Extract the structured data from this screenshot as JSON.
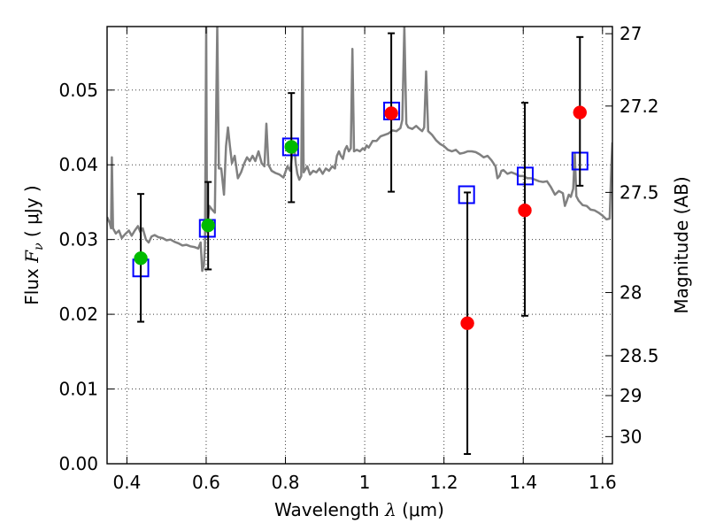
{
  "chart_data": {
    "type": "scatter",
    "xlabel": "Wavelength",
    "xlabel_symbol": "λ",
    "xlabel_unit_open": "(",
    "xlabel_unit": "μm",
    "xlabel_unit_close": ")",
    "ylabel": "Flux",
    "ylabel_symbol": "F",
    "ylabel_symbol_sub": "ν",
    "ylabel_unit_open": "(",
    "ylabel_unit": "μJy",
    "ylabel_unit_close": ")",
    "y2label": "Magnitude (AB)",
    "xlim": [
      0.35,
      1.625
    ],
    "ylim": [
      0.0,
      0.0585
    ],
    "grid": true,
    "x_ticks": [
      0.4,
      0.6,
      0.8,
      1.0,
      1.2,
      1.4,
      1.6
    ],
    "x_tick_labels": [
      "0.4",
      "0.6",
      "0.8",
      "1",
      "1.2",
      "1.4",
      "1.6"
    ],
    "y_ticks": [
      0.0,
      0.01,
      0.02,
      0.03,
      0.04,
      0.05
    ],
    "y_tick_labels": [
      "0.00",
      "0.01",
      "0.02",
      "0.03",
      "0.04",
      "0.05"
    ],
    "y2_ticks": [
      27,
      27.2,
      27.5,
      28,
      28.5,
      29,
      30
    ],
    "y2_tick_labels": [
      "27",
      "27.2",
      "27.5",
      "28",
      "28.5",
      "29",
      "30"
    ],
    "series": [
      {
        "kind": "line",
        "color": "#808080",
        "points": [
          [
            0.35,
            0.033
          ],
          [
            0.357,
            0.0322
          ],
          [
            0.36,
            0.0315
          ],
          [
            0.362,
            0.041
          ],
          [
            0.365,
            0.0315
          ],
          [
            0.372,
            0.0308
          ],
          [
            0.38,
            0.0312
          ],
          [
            0.387,
            0.0302
          ],
          [
            0.395,
            0.0307
          ],
          [
            0.405,
            0.0312
          ],
          [
            0.412,
            0.0305
          ],
          [
            0.42,
            0.0312
          ],
          [
            0.428,
            0.0318
          ],
          [
            0.434,
            0.031
          ],
          [
            0.44,
            0.0315
          ],
          [
            0.448,
            0.03
          ],
          [
            0.455,
            0.0296
          ],
          [
            0.462,
            0.0304
          ],
          [
            0.47,
            0.0306
          ],
          [
            0.48,
            0.0303
          ],
          [
            0.49,
            0.0302
          ],
          [
            0.5,
            0.0299
          ],
          [
            0.51,
            0.03
          ],
          [
            0.52,
            0.0297
          ],
          [
            0.53,
            0.0295
          ],
          [
            0.54,
            0.0292
          ],
          [
            0.55,
            0.0293
          ],
          [
            0.56,
            0.0291
          ],
          [
            0.57,
            0.029
          ],
          [
            0.58,
            0.0288
          ],
          [
            0.586,
            0.0296
          ],
          [
            0.59,
            0.0258
          ],
          [
            0.594,
            0.0265
          ],
          [
            0.597,
            0.029
          ],
          [
            0.6,
            0.0585
          ],
          [
            0.602,
            0.031
          ],
          [
            0.608,
            0.0345
          ],
          [
            0.615,
            0.034
          ],
          [
            0.622,
            0.0336
          ],
          [
            0.628,
            0.0585
          ],
          [
            0.632,
            0.0395
          ],
          [
            0.638,
            0.0395
          ],
          [
            0.645,
            0.036
          ],
          [
            0.65,
            0.0425
          ],
          [
            0.655,
            0.045
          ],
          [
            0.66,
            0.0425
          ],
          [
            0.665,
            0.0402
          ],
          [
            0.672,
            0.0412
          ],
          [
            0.68,
            0.0382
          ],
          [
            0.688,
            0.039
          ],
          [
            0.696,
            0.0402
          ],
          [
            0.703,
            0.041
          ],
          [
            0.71,
            0.0405
          ],
          [
            0.717,
            0.0412
          ],
          [
            0.724,
            0.0405
          ],
          [
            0.732,
            0.0418
          ],
          [
            0.74,
            0.0402
          ],
          [
            0.747,
            0.0398
          ],
          [
            0.752,
            0.0455
          ],
          [
            0.757,
            0.04
          ],
          [
            0.765,
            0.0392
          ],
          [
            0.775,
            0.0389
          ],
          [
            0.785,
            0.0387
          ],
          [
            0.795,
            0.0383
          ],
          [
            0.805,
            0.0398
          ],
          [
            0.812,
            0.0392
          ],
          [
            0.818,
            0.0418
          ],
          [
            0.822,
            0.0425
          ],
          [
            0.826,
            0.0402
          ],
          [
            0.83,
            0.0388
          ],
          [
            0.835,
            0.038
          ],
          [
            0.84,
            0.0385
          ],
          [
            0.843,
            0.0585
          ],
          [
            0.846,
            0.039
          ],
          [
            0.855,
            0.0398
          ],
          [
            0.862,
            0.0387
          ],
          [
            0.87,
            0.0392
          ],
          [
            0.878,
            0.039
          ],
          [
            0.886,
            0.0395
          ],
          [
            0.894,
            0.0388
          ],
          [
            0.902,
            0.0395
          ],
          [
            0.91,
            0.0392
          ],
          [
            0.918,
            0.0398
          ],
          [
            0.925,
            0.0395
          ],
          [
            0.93,
            0.0412
          ],
          [
            0.935,
            0.0418
          ],
          [
            0.94,
            0.0412
          ],
          [
            0.945,
            0.0408
          ],
          [
            0.95,
            0.042
          ],
          [
            0.955,
            0.0425
          ],
          [
            0.96,
            0.0418
          ],
          [
            0.965,
            0.0422
          ],
          [
            0.969,
            0.0555
          ],
          [
            0.973,
            0.0418
          ],
          [
            0.98,
            0.042
          ],
          [
            0.988,
            0.0418
          ],
          [
            0.995,
            0.0422
          ],
          [
            1.0,
            0.042
          ],
          [
            1.005,
            0.0426
          ],
          [
            1.01,
            0.0423
          ],
          [
            1.02,
            0.0432
          ],
          [
            1.03,
            0.0432
          ],
          [
            1.04,
            0.0438
          ],
          [
            1.05,
            0.044
          ],
          [
            1.06,
            0.0442
          ],
          [
            1.07,
            0.0446
          ],
          [
            1.08,
            0.0445
          ],
          [
            1.09,
            0.0449
          ],
          [
            1.095,
            0.046
          ],
          [
            1.1,
            0.0585
          ],
          [
            1.105,
            0.0455
          ],
          [
            1.11,
            0.045
          ],
          [
            1.12,
            0.0448
          ],
          [
            1.13,
            0.0452
          ],
          [
            1.138,
            0.0448
          ],
          [
            1.145,
            0.0445
          ],
          [
            1.15,
            0.045
          ],
          [
            1.155,
            0.0525
          ],
          [
            1.16,
            0.0445
          ],
          [
            1.17,
            0.044
          ],
          [
            1.18,
            0.0433
          ],
          [
            1.19,
            0.0428
          ],
          [
            1.2,
            0.0425
          ],
          [
            1.21,
            0.042
          ],
          [
            1.22,
            0.0418
          ],
          [
            1.23,
            0.042
          ],
          [
            1.24,
            0.0415
          ],
          [
            1.25,
            0.0416
          ],
          [
            1.26,
            0.0418
          ],
          [
            1.27,
            0.0418
          ],
          [
            1.28,
            0.0417
          ],
          [
            1.29,
            0.0414
          ],
          [
            1.3,
            0.041
          ],
          [
            1.31,
            0.0412
          ],
          [
            1.32,
            0.0406
          ],
          [
            1.33,
            0.0398
          ],
          [
            1.335,
            0.0382
          ],
          [
            1.34,
            0.0385
          ],
          [
            1.345,
            0.0392
          ],
          [
            1.35,
            0.0393
          ],
          [
            1.36,
            0.0388
          ],
          [
            1.37,
            0.039
          ],
          [
            1.38,
            0.0388
          ],
          [
            1.39,
            0.0385
          ],
          [
            1.4,
            0.0385
          ],
          [
            1.41,
            0.0382
          ],
          [
            1.42,
            0.0382
          ],
          [
            1.43,
            0.038
          ],
          [
            1.44,
            0.0378
          ],
          [
            1.45,
            0.0377
          ],
          [
            1.46,
            0.0378
          ],
          [
            1.47,
            0.037
          ],
          [
            1.48,
            0.036
          ],
          [
            1.49,
            0.0365
          ],
          [
            1.5,
            0.0362
          ],
          [
            1.505,
            0.0345
          ],
          [
            1.51,
            0.0352
          ],
          [
            1.515,
            0.036
          ],
          [
            1.52,
            0.0357
          ],
          [
            1.526,
            0.0368
          ],
          [
            1.53,
            0.0415
          ],
          [
            1.534,
            0.0358
          ],
          [
            1.54,
            0.0352
          ],
          [
            1.55,
            0.0346
          ],
          [
            1.56,
            0.0345
          ],
          [
            1.57,
            0.034
          ],
          [
            1.58,
            0.0339
          ],
          [
            1.59,
            0.0336
          ],
          [
            1.6,
            0.0332
          ],
          [
            1.61,
            0.0327
          ],
          [
            1.618,
            0.0328
          ],
          [
            1.622,
            0.0395
          ],
          [
            1.625,
            0.043
          ]
        ]
      },
      {
        "kind": "squares",
        "color": "#0000ff",
        "points": [
          [
            0.435,
            0.0262
          ],
          [
            0.603,
            0.0315
          ],
          [
            0.813,
            0.0424
          ],
          [
            1.068,
            0.0472
          ],
          [
            1.257,
            0.036
          ],
          [
            1.405,
            0.0385
          ],
          [
            1.543,
            0.0405
          ]
        ]
      },
      {
        "kind": "points",
        "color": "#00bb00",
        "points": [
          {
            "x": 0.435,
            "y": 0.0275,
            "err": [
              0.019,
              0.0361
            ]
          },
          {
            "x": 0.605,
            "y": 0.0319,
            "err": [
              0.026,
              0.0377
            ]
          },
          {
            "x": 0.815,
            "y": 0.0424,
            "err": [
              0.035,
              0.0496
            ]
          }
        ]
      },
      {
        "kind": "points",
        "color": "#ff0000",
        "points": [
          {
            "x": 1.067,
            "y": 0.0469,
            "err": [
              0.0364,
              0.0576
            ]
          },
          {
            "x": 1.259,
            "y": 0.0188,
            "err": [
              0.0013,
              0.0363
            ]
          },
          {
            "x": 1.404,
            "y": 0.0339,
            "err": [
              0.0198,
              0.0483
            ]
          },
          {
            "x": 1.543,
            "y": 0.047,
            "err": [
              0.0372,
              0.0571
            ]
          }
        ]
      }
    ]
  }
}
